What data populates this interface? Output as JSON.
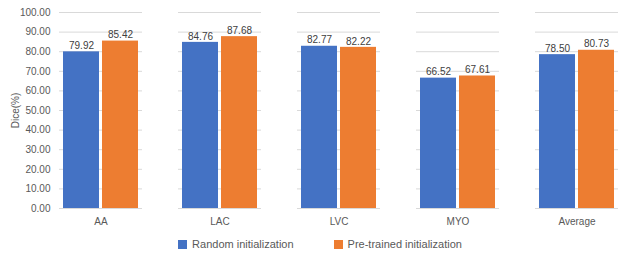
{
  "chart_data": {
    "type": "bar",
    "y_label": "Dice(%)",
    "categories": [
      "AA",
      "LAC",
      "LVC",
      "MYO",
      "Average"
    ],
    "series": [
      {
        "name": "Random initialization",
        "color": "#4472c4",
        "values": [
          79.92,
          84.76,
          82.77,
          66.52,
          78.5
        ],
        "value_labels": [
          "79.92",
          "84.76",
          "82.77",
          "66.52",
          "78.50"
        ]
      },
      {
        "name": "Pre-trained initialization",
        "color": "#ed7d31",
        "values": [
          85.42,
          87.68,
          82.22,
          67.61,
          80.73
        ],
        "value_labels": [
          "85.42",
          "87.68",
          "82.22",
          "67.61",
          "80.73"
        ]
      }
    ],
    "ylim": [
      0,
      100
    ],
    "yticks": [
      {
        "value": 0,
        "label": "0.00"
      },
      {
        "value": 10,
        "label": "10.00"
      },
      {
        "value": 20,
        "label": "20.00"
      },
      {
        "value": 30,
        "label": "30.00"
      },
      {
        "value": 40,
        "label": "40.00"
      },
      {
        "value": 50,
        "label": "50.00"
      },
      {
        "value": 60,
        "label": "60.00"
      },
      {
        "value": 70,
        "label": "70.00"
      },
      {
        "value": 80,
        "label": "80.00"
      },
      {
        "value": 90,
        "label": "90.00"
      },
      {
        "value": 100,
        "label": "100.00"
      }
    ],
    "grid": true,
    "legend": "bottom",
    "data_labels": true
  }
}
